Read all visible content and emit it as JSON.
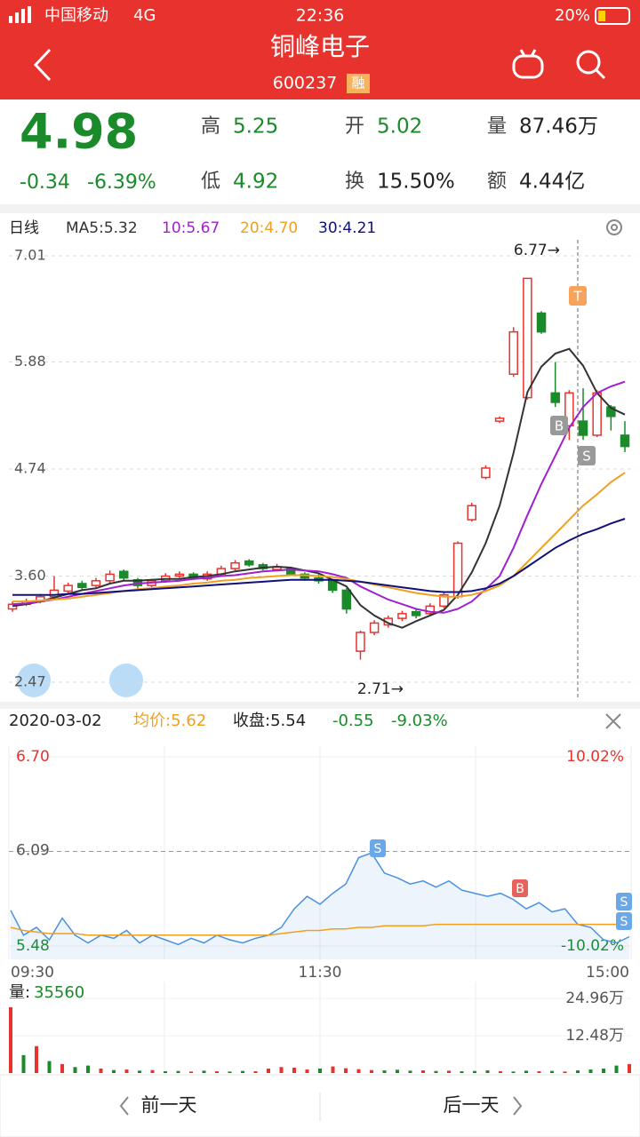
{
  "status_bar": {
    "carrier": "中国移动",
    "network": "4G",
    "time": "22:36",
    "battery": "20%"
  },
  "header": {
    "name": "铜峰电子",
    "code": "600237",
    "tag": "融"
  },
  "quote": {
    "price": "4.98",
    "change": "-0.34",
    "pct": "-6.39%",
    "fields": [
      {
        "label": "高",
        "value": "5.25",
        "color": "#1a8a2a"
      },
      {
        "label": "低",
        "value": "4.92",
        "color": "#1a8a2a"
      },
      {
        "label": "开",
        "value": "5.02",
        "color": "#1a8a2a"
      },
      {
        "label": "换",
        "value": "15.50%",
        "color": "#222222"
      },
      {
        "label": "量",
        "value": "87.46万",
        "color": "#222222"
      },
      {
        "label": "额",
        "value": "4.44亿",
        "color": "#222222"
      }
    ]
  },
  "kline": {
    "period": "日线",
    "ylim": [
      2.47,
      7.01
    ],
    "yticks": [
      {
        "value": 7.01,
        "label": "7.01"
      },
      {
        "value": 5.88,
        "label": "5.88"
      },
      {
        "value": 4.74,
        "label": "4.74"
      },
      {
        "value": 3.6,
        "label": "3.60"
      },
      {
        "value": 2.47,
        "label": "2.47"
      }
    ],
    "candles": [
      [
        3.25,
        3.3,
        3.33,
        3.22
      ],
      [
        3.3,
        3.33,
        3.36,
        3.28
      ],
      [
        3.33,
        3.38,
        3.41,
        3.31
      ],
      [
        3.38,
        3.45,
        3.6,
        3.36
      ],
      [
        3.44,
        3.5,
        3.53,
        3.42
      ],
      [
        3.52,
        3.48,
        3.55,
        3.45
      ],
      [
        3.5,
        3.55,
        3.58,
        3.48
      ],
      [
        3.55,
        3.62,
        3.66,
        3.53
      ],
      [
        3.65,
        3.58,
        3.67,
        3.55
      ],
      [
        3.56,
        3.5,
        3.58,
        3.47
      ],
      [
        3.5,
        3.55,
        3.57,
        3.48
      ],
      [
        3.55,
        3.6,
        3.63,
        3.53
      ],
      [
        3.6,
        3.62,
        3.65,
        3.58
      ],
      [
        3.62,
        3.58,
        3.64,
        3.56
      ],
      [
        3.57,
        3.62,
        3.65,
        3.55
      ],
      [
        3.62,
        3.68,
        3.71,
        3.6
      ],
      [
        3.68,
        3.74,
        3.77,
        3.66
      ],
      [
        3.76,
        3.72,
        3.78,
        3.7
      ],
      [
        3.72,
        3.68,
        3.74,
        3.66
      ],
      [
        3.67,
        3.7,
        3.73,
        3.65
      ],
      [
        3.68,
        3.62,
        3.7,
        3.6
      ],
      [
        3.62,
        3.58,
        3.64,
        3.55
      ],
      [
        3.58,
        3.55,
        3.62,
        3.52
      ],
      [
        3.55,
        3.45,
        3.57,
        3.42
      ],
      [
        3.45,
        3.25,
        3.47,
        3.2
      ],
      [
        2.8,
        3.0,
        3.02,
        2.71
      ],
      [
        3.0,
        3.1,
        3.13,
        2.97
      ],
      [
        3.08,
        3.15,
        3.18,
        3.05
      ],
      [
        3.15,
        3.2,
        3.23,
        3.12
      ],
      [
        3.22,
        3.18,
        3.25,
        3.15
      ],
      [
        3.2,
        3.28,
        3.31,
        3.18
      ],
      [
        3.28,
        3.4,
        3.43,
        3.26
      ],
      [
        3.38,
        3.95,
        3.97,
        3.36
      ],
      [
        4.2,
        4.35,
        4.38,
        4.18
      ],
      [
        4.65,
        4.75,
        4.78,
        4.63
      ],
      [
        5.25,
        5.28,
        5.3,
        5.23
      ],
      [
        5.75,
        6.2,
        6.25,
        5.72
      ],
      [
        5.5,
        6.77,
        6.77,
        5.48
      ],
      [
        6.4,
        6.2,
        6.42,
        6.18
      ],
      [
        5.55,
        5.45,
        5.88,
        5.4
      ],
      [
        5.2,
        5.55,
        5.58,
        5.05
      ],
      [
        5.25,
        5.1,
        5.6,
        5.05
      ],
      [
        5.1,
        5.55,
        5.58,
        5.08
      ],
      [
        5.4,
        5.3,
        5.42,
        5.15
      ],
      [
        5.1,
        4.98,
        5.25,
        4.92
      ]
    ],
    "series": [
      {
        "name": "MA5:5.32",
        "color": "#333333",
        "values": [
          3.28,
          3.3,
          3.33,
          3.37,
          3.41,
          3.45,
          3.47,
          3.52,
          3.55,
          3.55,
          3.56,
          3.57,
          3.57,
          3.59,
          3.6,
          3.62,
          3.65,
          3.67,
          3.69,
          3.7,
          3.69,
          3.66,
          3.63,
          3.56,
          3.49,
          3.29,
          3.18,
          3.1,
          3.05,
          3.12,
          3.18,
          3.24,
          3.4,
          3.64,
          3.95,
          4.35,
          4.91,
          5.56,
          5.83,
          5.97,
          6.02,
          5.84,
          5.55,
          5.39,
          5.32
        ]
      },
      {
        "name": "10:5.67",
        "color": "#a020d0",
        "values": [
          3.3,
          3.31,
          3.33,
          3.35,
          3.38,
          3.41,
          3.44,
          3.47,
          3.5,
          3.52,
          3.53,
          3.54,
          3.55,
          3.57,
          3.58,
          3.6,
          3.61,
          3.63,
          3.65,
          3.66,
          3.67,
          3.66,
          3.65,
          3.62,
          3.58,
          3.49,
          3.42,
          3.35,
          3.3,
          3.25,
          3.22,
          3.21,
          3.25,
          3.33,
          3.46,
          3.6,
          3.9,
          4.25,
          4.58,
          4.88,
          5.18,
          5.4,
          5.55,
          5.62,
          5.67
        ]
      },
      {
        "name": "20:4.70",
        "color": "#f0a020",
        "values": [
          3.33,
          3.33,
          3.34,
          3.35,
          3.36,
          3.38,
          3.4,
          3.42,
          3.44,
          3.46,
          3.47,
          3.49,
          3.5,
          3.52,
          3.53,
          3.55,
          3.56,
          3.58,
          3.59,
          3.6,
          3.61,
          3.61,
          3.6,
          3.59,
          3.57,
          3.54,
          3.51,
          3.48,
          3.45,
          3.42,
          3.4,
          3.38,
          3.38,
          3.4,
          3.44,
          3.5,
          3.6,
          3.75,
          3.9,
          4.05,
          4.2,
          4.35,
          4.47,
          4.6,
          4.7
        ]
      },
      {
        "name": "30:4.21",
        "color": "#10107a",
        "values": [
          3.4,
          3.4,
          3.4,
          3.4,
          3.41,
          3.41,
          3.42,
          3.43,
          3.44,
          3.45,
          3.46,
          3.47,
          3.48,
          3.49,
          3.5,
          3.51,
          3.52,
          3.53,
          3.54,
          3.55,
          3.56,
          3.56,
          3.56,
          3.56,
          3.55,
          3.54,
          3.52,
          3.5,
          3.48,
          3.46,
          3.44,
          3.43,
          3.43,
          3.44,
          3.47,
          3.52,
          3.6,
          3.7,
          3.8,
          3.9,
          3.98,
          4.05,
          4.1,
          4.16,
          4.21
        ]
      }
    ],
    "annotations": [
      "6.77→",
      "2.71→"
    ],
    "markers": [
      "T",
      "B",
      "S"
    ]
  },
  "intraday": {
    "date": "2020-03-02",
    "items": [
      {
        "text": "均价:5.62",
        "color": "#f0a020"
      },
      {
        "text": "收盘:5.54",
        "color": "#222222"
      },
      {
        "text": "-0.55",
        "color": "#1a8a2a"
      },
      {
        "text": "-9.03%",
        "color": "#1a8a2a"
      }
    ],
    "ylim": [
      5.48,
      6.7
    ],
    "yticks": [
      {
        "value": 6.7,
        "label": "6.70"
      },
      {
        "value": 6.09,
        "label": "6.09"
      },
      {
        "value": 5.48,
        "label": "5.48"
      }
    ],
    "pct_labels": [
      "10.02%",
      "-10.02%"
    ],
    "times": [
      "09:30",
      "11:30",
      "15:00"
    ],
    "markers": [
      "S",
      "B",
      "S",
      "S"
    ],
    "price": [
      5.71,
      5.55,
      5.6,
      5.52,
      5.66,
      5.55,
      5.5,
      5.55,
      5.53,
      5.58,
      5.5,
      5.55,
      5.52,
      5.49,
      5.53,
      5.5,
      5.55,
      5.52,
      5.5,
      5.53,
      5.55,
      5.6,
      5.72,
      5.8,
      5.75,
      5.82,
      5.88,
      6.05,
      6.08,
      5.95,
      5.92,
      5.88,
      5.9,
      5.86,
      5.9,
      5.84,
      5.82,
      5.8,
      5.82,
      5.78,
      5.72,
      5.76,
      5.7,
      5.72,
      5.62,
      5.6,
      5.52,
      5.5,
      5.54
    ],
    "avg": [
      5.6,
      5.58,
      5.57,
      5.56,
      5.56,
      5.56,
      5.55,
      5.55,
      5.55,
      5.55,
      5.55,
      5.55,
      5.55,
      5.55,
      5.55,
      5.55,
      5.55,
      5.55,
      5.55,
      5.55,
      5.55,
      5.56,
      5.57,
      5.58,
      5.58,
      5.59,
      5.59,
      5.6,
      5.6,
      5.61,
      5.61,
      5.61,
      5.61,
      5.62,
      5.62,
      5.62,
      5.62,
      5.62,
      5.62,
      5.62,
      5.62,
      5.62,
      5.62,
      5.62,
      5.62,
      5.62,
      5.62,
      5.62,
      5.62
    ],
    "volume_label": "量:",
    "volume_value": "35560",
    "vlim": [
      0,
      24.96
    ],
    "vticks": [
      {
        "value": 24.96,
        "label": "24.96万"
      },
      {
        "value": 12.48,
        "label": "12.48万"
      }
    ],
    "volume": [
      22,
      6,
      9,
      4,
      3,
      2,
      2.5,
      1.5,
      1,
      1.2,
      0.8,
      1,
      0.6,
      0.7,
      0.5,
      0.8,
      0.6,
      0.5,
      0.7,
      0.6,
      1.5,
      2,
      1.8,
      1.2,
      1.5,
      2.2,
      1.6,
      1.3,
      1.0,
      0.9,
      1.1,
      0.8,
      0.9,
      0.7,
      0.8,
      0.6,
      0.7,
      0.9,
      0.6,
      0.5,
      0.8,
      0.6,
      0.7,
      0.5,
      0.9,
      1.2,
      1.5,
      2.5,
      3
    ]
  },
  "footer": {
    "prev": "前一天",
    "next": "后一天"
  }
}
